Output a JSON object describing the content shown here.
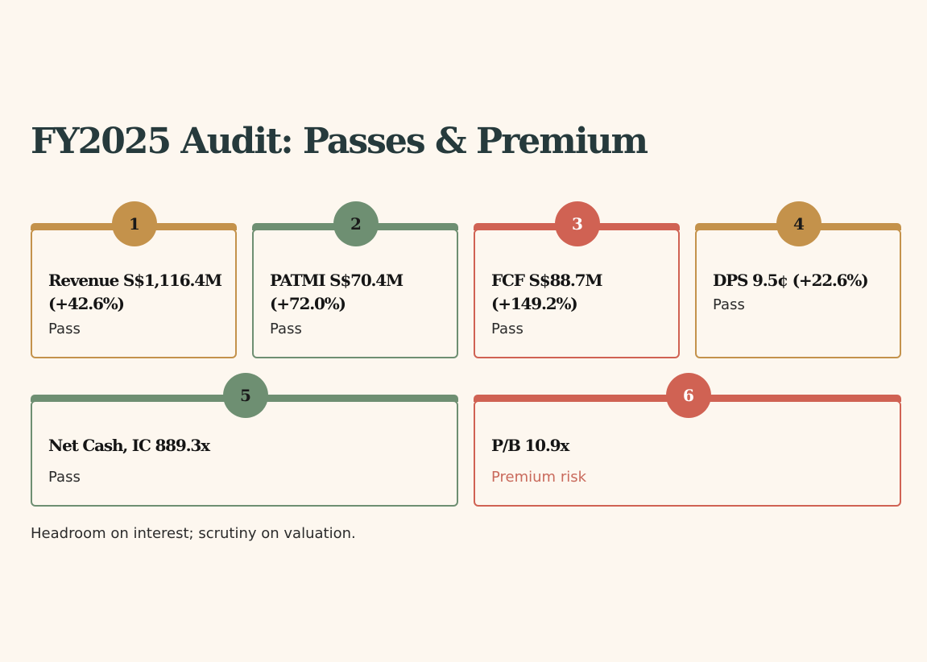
{
  "title": "FY2025 Audit: Passes & Premium",
  "colors": {
    "background": "#fdf7ef",
    "gold": "#c4924b",
    "green": "#6e8f72",
    "red": "#d06253",
    "risk_text": "#c96a5c",
    "title": "#263a3c"
  },
  "cards": [
    {
      "number": "1",
      "metric": "Revenue S$1,116.4M (+42.6%)",
      "status": "Pass",
      "accent": "gold"
    },
    {
      "number": "2",
      "metric": "PATMI S$70.4M (+72.0%)",
      "status": "Pass",
      "accent": "green"
    },
    {
      "number": "3",
      "metric": "FCF S$88.7M (+149.2%)",
      "status": "Pass",
      "accent": "red"
    },
    {
      "number": "4",
      "metric": "DPS 9.5¢ (+22.6%)",
      "status": "Pass",
      "accent": "gold"
    },
    {
      "number": "5",
      "metric": "Net Cash, IC 889.3x",
      "status": "Pass",
      "accent": "green"
    },
    {
      "number": "6",
      "metric": "P/B 10.9x",
      "status": "Premium risk",
      "accent": "red"
    }
  ],
  "footer": "Headroom on interest; scrutiny on valuation."
}
